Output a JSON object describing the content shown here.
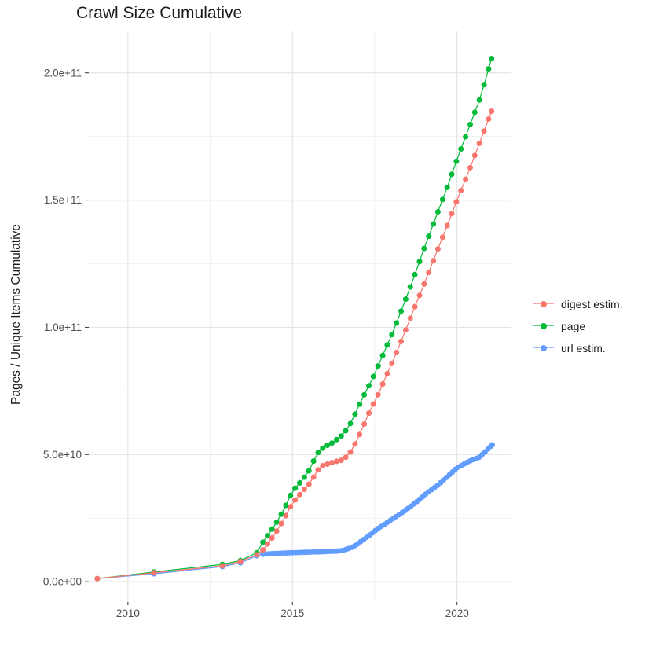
{
  "title": "Crawl Size Cumulative",
  "chart_data": {
    "type": "scatter",
    "title": "Crawl Size Cumulative",
    "xlabel": "",
    "ylabel": "Pages / Unique Items Cumulative",
    "grid": true,
    "legend_position": "right",
    "background_color": "#FFFFFF",
    "grid_major_color": "#E4E4E4",
    "grid_minor_color": "#F1F1F1",
    "tick_label_color": "#4d4d4d",
    "x_axis": {
      "domain": [
        2008.81,
        2021.63
      ],
      "major_ticks": [
        {
          "value": 2010,
          "label": "2010"
        },
        {
          "value": 2015,
          "label": "2015"
        },
        {
          "value": 2020,
          "label": "2020"
        }
      ],
      "minor_ticks": [
        2012.5,
        2017.5
      ]
    },
    "y_axis": {
      "domain": [
        -8000000000.0,
        216300000000.0
      ],
      "major_ticks": [
        {
          "value": 0,
          "label": "0.0e+00"
        },
        {
          "value": 50000000000.0,
          "label": "5.0e+10"
        },
        {
          "value": 100000000000.0,
          "label": "1.0e+11"
        },
        {
          "value": 150000000000.0,
          "label": "1.5e+11"
        },
        {
          "value": 200000000000.0,
          "label": "2.0e+11"
        }
      ],
      "minor_ticks": [
        25000000000.0,
        75000000000.0,
        125000000000.0,
        175000000000.0
      ]
    },
    "sampling": {
      "dense_from": 2014.1
    },
    "series": [
      {
        "name": "digest estim.",
        "color": "#F8766D",
        "draw_order": 3,
        "dense_step": 0.14,
        "points": [
          [
            2009.07,
            1200000000.0
          ],
          [
            2010.79,
            3500000000.0
          ],
          [
            2012.87,
            6200000000.0
          ],
          [
            2013.42,
            8000000000.0
          ],
          [
            2013.92,
            10600000000.0
          ],
          [
            2014.1,
            12500000000.0
          ],
          [
            2014.4,
            17500000000.0
          ],
          [
            2014.6,
            21500000000.0
          ],
          [
            2014.8,
            26000000000.0
          ],
          [
            2015.0,
            30900000000.0
          ],
          [
            2015.3,
            35500000000.0
          ],
          [
            2015.55,
            39000000000.0
          ],
          [
            2015.74,
            43500000000.0
          ],
          [
            2015.9,
            45500000000.0
          ],
          [
            2016.1,
            46400000000.0
          ],
          [
            2016.3,
            47200000000.0
          ],
          [
            2016.5,
            47800000000.0
          ],
          [
            2016.63,
            49000000000.0
          ],
          [
            2016.8,
            51600000000.0
          ],
          [
            2016.96,
            55700000000.0
          ],
          [
            2017.13,
            60300000000.0
          ],
          [
            2017.27,
            65000000000.0
          ],
          [
            2017.44,
            69300000000.0
          ],
          [
            2017.6,
            73500000000.0
          ],
          [
            2017.8,
            79500000000.0
          ],
          [
            2018.06,
            87000000000.0
          ],
          [
            2018.35,
            96000000000.0
          ],
          [
            2018.7,
            107500000000.0
          ],
          [
            2019.0,
            117000000000.0
          ],
          [
            2019.35,
            128500000000.0
          ],
          [
            2019.7,
            140000000000.0
          ],
          [
            2020.0,
            150000000000.0
          ],
          [
            2020.35,
            161000000000.0
          ],
          [
            2020.7,
            173000000000.0
          ],
          [
            2021.05,
            184900000000.0
          ]
        ]
      },
      {
        "name": "page",
        "color": "#00BA38",
        "draw_order": 2,
        "dense_step": 0.14,
        "points": [
          [
            2009.07,
            1200000000.0
          ],
          [
            2010.79,
            3800000000.0
          ],
          [
            2012.87,
            6800000000.0
          ],
          [
            2013.42,
            8300000000.0
          ],
          [
            2013.92,
            11400000000.0
          ],
          [
            2014.1,
            15500000000.0
          ],
          [
            2014.4,
            21000000000.0
          ],
          [
            2014.6,
            25000000000.0
          ],
          [
            2014.8,
            30000000000.0
          ],
          [
            2015.0,
            35600000000.0
          ],
          [
            2015.3,
            40000000000.0
          ],
          [
            2015.55,
            44500000000.0
          ],
          [
            2015.72,
            50000000000.0
          ],
          [
            2015.96,
            53000000000.0
          ],
          [
            2016.2,
            54500000000.0
          ],
          [
            2016.46,
            57000000000.0
          ],
          [
            2016.63,
            59500000000.0
          ],
          [
            2016.8,
            63000000000.0
          ],
          [
            2016.94,
            67000000000.0
          ],
          [
            2017.1,
            71400000000.0
          ],
          [
            2017.27,
            75800000000.0
          ],
          [
            2017.42,
            79500000000.0
          ],
          [
            2017.63,
            85700000000.0
          ],
          [
            2017.87,
            92800000000.0
          ],
          [
            2018.05,
            98000000000.0
          ],
          [
            2018.35,
            108000000000.0
          ],
          [
            2018.7,
            120000000000.0
          ],
          [
            2019.0,
            131000000000.0
          ],
          [
            2019.35,
            143000000000.0
          ],
          [
            2019.7,
            155000000000.0
          ],
          [
            2020.0,
            166000000000.0
          ],
          [
            2020.35,
            178000000000.0
          ],
          [
            2020.7,
            190000000000.0
          ],
          [
            2021.05,
            205600000000.0
          ]
        ]
      },
      {
        "name": "url estim.",
        "color": "#619CFF",
        "draw_order": 1,
        "dense_step": 0.09,
        "points": [
          [
            2009.07,
            1200000000.0
          ],
          [
            2010.79,
            3100000000.0
          ],
          [
            2012.87,
            5900000000.0
          ],
          [
            2013.42,
            7400000000.0
          ],
          [
            2013.92,
            10200000000.0
          ],
          [
            2014.1,
            10800000000.0
          ],
          [
            2014.5,
            11100000000.0
          ],
          [
            2015.0,
            11400000000.0
          ],
          [
            2015.5,
            11600000000.0
          ],
          [
            2016.0,
            11800000000.0
          ],
          [
            2016.3,
            12000000000.0
          ],
          [
            2016.55,
            12300000000.0
          ],
          [
            2016.7,
            13000000000.0
          ],
          [
            2016.82,
            13600000000.0
          ],
          [
            2016.94,
            14500000000.0
          ],
          [
            2017.27,
            17600000000.0
          ],
          [
            2017.58,
            20700000000.0
          ],
          [
            2017.94,
            23800000000.0
          ],
          [
            2018.13,
            25400000000.0
          ],
          [
            2018.47,
            28400000000.0
          ],
          [
            2018.78,
            31500000000.0
          ],
          [
            2019.09,
            34900000000.0
          ],
          [
            2019.42,
            38000000000.0
          ],
          [
            2019.74,
            41700000000.0
          ],
          [
            2020.0,
            44800000000.0
          ],
          [
            2020.36,
            47300000000.0
          ],
          [
            2020.67,
            48900000000.0
          ],
          [
            2020.85,
            51000000000.0
          ],
          [
            2021.07,
            53800000000.0
          ]
        ]
      }
    ]
  }
}
